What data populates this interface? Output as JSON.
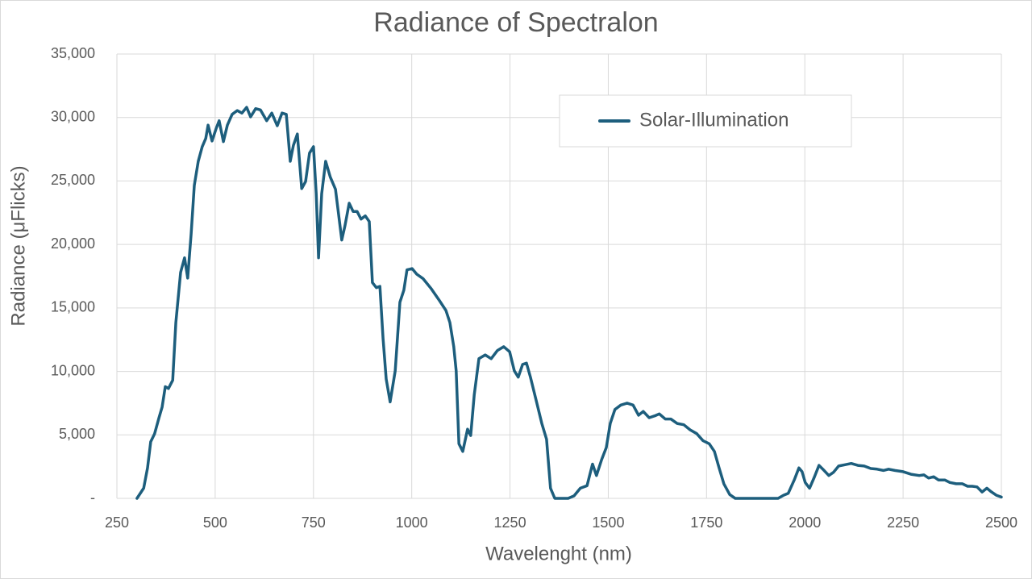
{
  "chart_data": {
    "type": "line",
    "title": "Radiance of Spectralon",
    "x_label": "Wavelenght (nm)",
    "y_label": "Radiance (μFlicks)",
    "x": [
      301,
      318,
      328,
      336,
      346,
      357,
      365,
      373,
      381,
      392,
      400,
      412,
      422,
      430,
      439,
      447,
      457,
      467,
      476,
      482,
      492,
      502,
      510,
      521,
      531,
      543,
      556,
      568,
      580,
      590,
      603,
      615,
      631,
      644,
      658,
      670,
      681,
      691,
      699,
      709,
      720,
      730,
      740,
      750,
      757,
      763,
      771,
      781,
      793,
      806,
      822,
      830,
      841,
      851,
      861,
      871,
      882,
      892,
      900,
      910,
      919,
      927,
      935,
      945,
      958,
      970,
      980,
      988,
      1001,
      1013,
      1029,
      1050,
      1070,
      1087,
      1097,
      1107,
      1113,
      1120,
      1130,
      1142,
      1150,
      1159,
      1171,
      1187,
      1202,
      1218,
      1234,
      1249,
      1261,
      1271,
      1282,
      1292,
      1302,
      1316,
      1331,
      1343,
      1353,
      1364,
      1398,
      1413,
      1429,
      1446,
      1460,
      1470,
      1483,
      1495,
      1505,
      1517,
      1532,
      1548,
      1563,
      1577,
      1589,
      1604,
      1618,
      1630,
      1645,
      1659,
      1675,
      1692,
      1708,
      1725,
      1741,
      1757,
      1770,
      1782,
      1794,
      1809,
      1823,
      1932,
      1946,
      1958,
      1973,
      1985,
      1993,
      2001,
      2012,
      2024,
      2036,
      2049,
      2061,
      2073,
      2086,
      2102,
      2118,
      2135,
      2151,
      2168,
      2184,
      2200,
      2213,
      2229,
      2250,
      2270,
      2291,
      2303,
      2315,
      2328,
      2340,
      2356,
      2369,
      2385,
      2401,
      2414,
      2426,
      2438,
      2451,
      2463,
      2475,
      2487,
      2500
    ],
    "series": [
      {
        "name": "Solar-Illumination",
        "color": "#1d5e7d",
        "values": [
          0,
          800,
          2400,
          4450,
          5100,
          6350,
          7200,
          8800,
          8650,
          9300,
          13850,
          17800,
          18950,
          17350,
          20850,
          24650,
          26550,
          27700,
          28350,
          29400,
          28150,
          29100,
          29750,
          28100,
          29400,
          30250,
          30550,
          30350,
          30800,
          30050,
          30700,
          30600,
          29750,
          30350,
          29350,
          30350,
          30250,
          26550,
          27800,
          28700,
          24400,
          24950,
          27200,
          27700,
          24000,
          18950,
          24000,
          26550,
          25300,
          24350,
          20350,
          21450,
          23250,
          22600,
          22600,
          22000,
          22250,
          21800,
          17000,
          16600,
          16700,
          12600,
          9400,
          7600,
          10050,
          15450,
          16400,
          18000,
          18100,
          17650,
          17300,
          16500,
          15600,
          14800,
          13850,
          11950,
          10050,
          4300,
          3700,
          5450,
          4950,
          8150,
          11000,
          11300,
          11000,
          11650,
          11950,
          11550,
          10050,
          9550,
          10550,
          10650,
          9550,
          7800,
          5900,
          4650,
          800,
          0,
          0,
          200,
          800,
          1000,
          2700,
          1800,
          3050,
          4000,
          5900,
          7000,
          7350,
          7500,
          7350,
          6550,
          6850,
          6350,
          6500,
          6650,
          6250,
          6250,
          5900,
          5800,
          5400,
          5100,
          4550,
          4300,
          3700,
          2400,
          1150,
          300,
          0,
          0,
          250,
          400,
          1450,
          2400,
          2100,
          1250,
          800,
          1650,
          2600,
          2200,
          1800,
          2050,
          2550,
          2650,
          2750,
          2600,
          2550,
          2350,
          2300,
          2200,
          2300,
          2200,
          2100,
          1900,
          1800,
          1850,
          1600,
          1700,
          1450,
          1450,
          1250,
          1150,
          1150,
          950,
          950,
          900,
          500,
          800,
          500,
          250,
          100
        ]
      }
    ],
    "xlim": [
      250,
      2500
    ],
    "ylim": [
      0,
      35000
    ],
    "xticks": [
      250,
      500,
      750,
      1000,
      1250,
      1500,
      1750,
      2000,
      2250,
      2500
    ],
    "yticks": [
      {
        "value": 0,
        "label": "-"
      },
      {
        "value": 5000,
        "label": "5,000"
      },
      {
        "value": 10000,
        "label": "10,000"
      },
      {
        "value": 15000,
        "label": "15,000"
      },
      {
        "value": 20000,
        "label": "20,000"
      },
      {
        "value": 25000,
        "label": "25,000"
      },
      {
        "value": 30000,
        "label": "30,000"
      },
      {
        "value": 35000,
        "label": "35,000"
      }
    ],
    "grid": true,
    "legend": "upper right"
  }
}
